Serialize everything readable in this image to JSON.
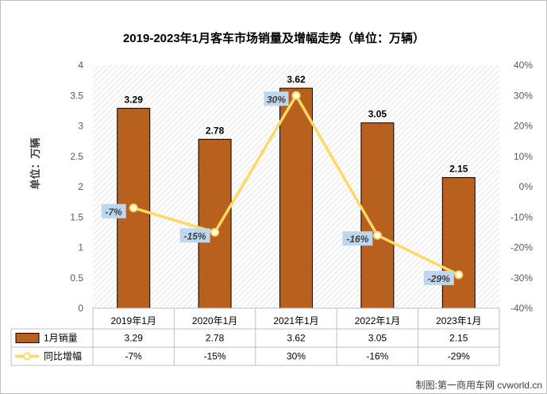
{
  "chart_data": {
    "type": "bar",
    "title": "2019-2023年1月客车市场销量及增幅走势（单位：万辆）",
    "ylabel": "单位：万辆",
    "categories": [
      "2019年1月",
      "2020年1月",
      "2021年1月",
      "2022年1月",
      "2023年1月"
    ],
    "ylim": [
      0,
      4
    ],
    "yticks": [
      "0",
      "0.5",
      "1",
      "1.5",
      "2",
      "2.5",
      "3",
      "3.5",
      "4"
    ],
    "y2lim": [
      -40,
      40
    ],
    "y2ticks": [
      "-40%",
      "-30%",
      "-20%",
      "-10%",
      "0%",
      "10%",
      "20%",
      "30%",
      "40%"
    ],
    "series": [
      {
        "name": "1月销量",
        "type": "bar",
        "axis": "left",
        "color": "#B8611F",
        "values": [
          3.29,
          2.78,
          3.62,
          3.05,
          2.15
        ],
        "labels": [
          "3.29",
          "2.78",
          "3.62",
          "3.05",
          "2.15"
        ]
      },
      {
        "name": "同比增幅",
        "type": "line",
        "axis": "right",
        "color": "#FFD966",
        "values": [
          -7,
          -15,
          30,
          -16,
          -29
        ],
        "labels": [
          "-7%",
          "-15%",
          "30%",
          "-16%",
          "-29%"
        ]
      }
    ],
    "grid": false,
    "legend": "data table below chart"
  },
  "source": "制图:第一商用车网 cvworld.cn"
}
